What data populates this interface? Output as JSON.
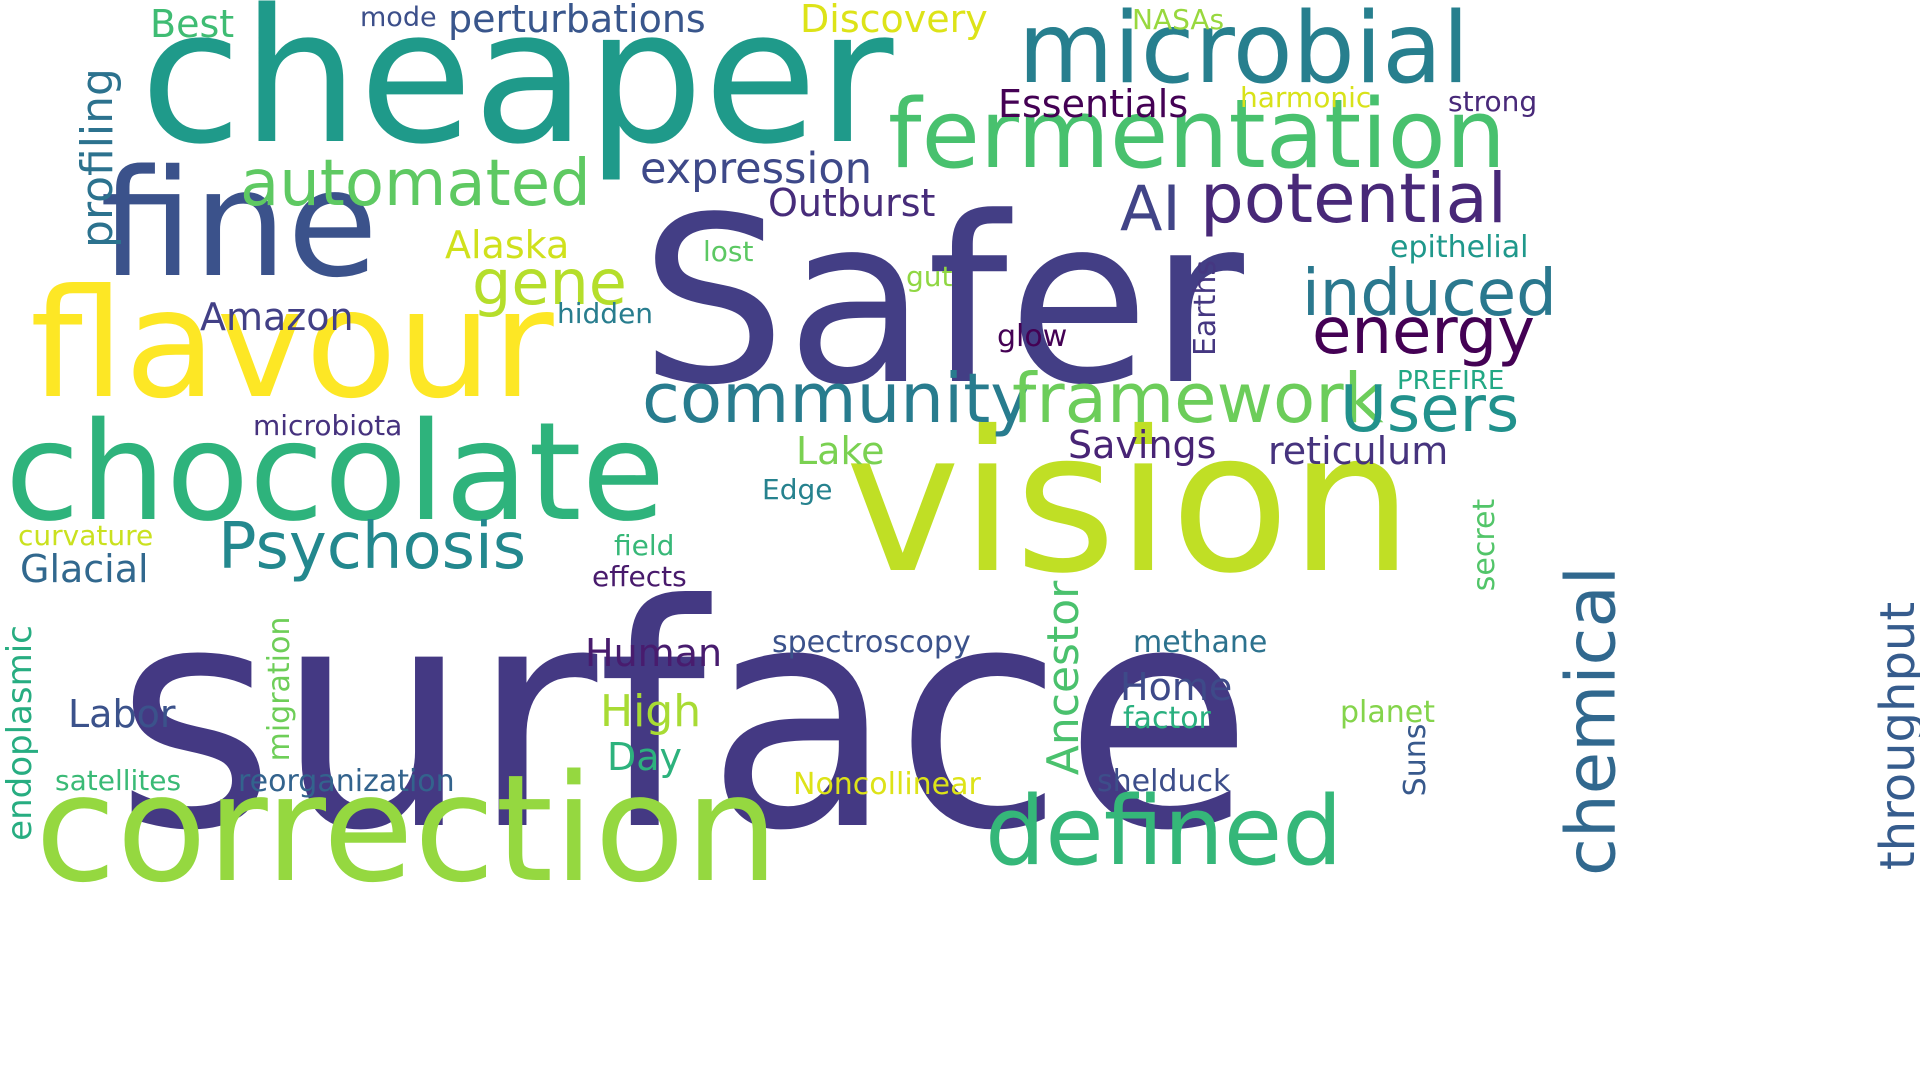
{
  "word_cloud": {
    "words": [
      {
        "text": "surface",
        "color": "#443983"
      },
      {
        "text": "Safer",
        "color": "#433e85"
      },
      {
        "text": "cheaper",
        "color": "#1f9a8a"
      },
      {
        "text": "vision",
        "color": "#c0df25"
      },
      {
        "text": "correction",
        "color": "#95d840"
      },
      {
        "text": "fine",
        "color": "#3b528b"
      },
      {
        "text": "flavour",
        "color": "#fde725"
      },
      {
        "text": "chocolate",
        "color": "#2eb37c"
      },
      {
        "text": "microbial",
        "color": "#277f8e"
      },
      {
        "text": "fermentation",
        "color": "#48c16e"
      },
      {
        "text": "defined",
        "color": "#35b779"
      },
      {
        "text": "automated",
        "color": "#5ec962"
      },
      {
        "text": "community",
        "color": "#287c8e"
      },
      {
        "text": "framework",
        "color": "#6ccd5a"
      },
      {
        "text": "potential",
        "color": "#482878"
      },
      {
        "text": "chemical",
        "color": "#31688e"
      },
      {
        "text": "Psychosis",
        "color": "#23888e"
      },
      {
        "text": "Users",
        "color": "#21918c"
      },
      {
        "text": "induced",
        "color": "#2a788e"
      },
      {
        "text": "energy",
        "color": "#440154"
      },
      {
        "text": "gene",
        "color": "#b5de2b"
      },
      {
        "text": "AI",
        "color": "#414487"
      },
      {
        "text": "expression",
        "color": "#3e4989"
      },
      {
        "text": "throughput",
        "color": "#365c8d"
      },
      {
        "text": "profiling",
        "color": "#2c728e"
      },
      {
        "text": "Ancestor",
        "color": "#4ac16d"
      },
      {
        "text": "Essentials",
        "color": "#440154"
      },
      {
        "text": "perturbations",
        "color": "#39568c"
      },
      {
        "text": "Discovery",
        "color": "#dde318"
      },
      {
        "text": "Best",
        "color": "#3fbc73"
      },
      {
        "text": "Outburst",
        "color": "#472c7a"
      },
      {
        "text": "reticulum",
        "color": "#46337e"
      },
      {
        "text": "Savings",
        "color": "#482475"
      },
      {
        "text": "Alaska",
        "color": "#d0e11c"
      },
      {
        "text": "Amazon",
        "color": "#424086"
      },
      {
        "text": "Lake",
        "color": "#7ad151"
      },
      {
        "text": "Human",
        "color": "#481c6e"
      },
      {
        "text": "High",
        "color": "#a8db34"
      },
      {
        "text": "Home",
        "color": "#3e4a89"
      },
      {
        "text": "Labor",
        "color": "#3b528b"
      },
      {
        "text": "Glacial",
        "color": "#31688e"
      },
      {
        "text": "Day",
        "color": "#2db27d"
      },
      {
        "text": "endoplasmic",
        "color": "#27ad81"
      },
      {
        "text": "migration",
        "color": "#6ece58"
      },
      {
        "text": "reorganization",
        "color": "#33638d"
      },
      {
        "text": "Noncollinear",
        "color": "#dde318"
      },
      {
        "text": "shelduck",
        "color": "#3d4e8a"
      },
      {
        "text": "spectroscopy",
        "color": "#3b528b"
      },
      {
        "text": "methane",
        "color": "#2c728e"
      },
      {
        "text": "factor",
        "color": "#2ab07f"
      },
      {
        "text": "planet",
        "color": "#84d44b"
      },
      {
        "text": "Suns",
        "color": "#38598c"
      },
      {
        "text": "secret",
        "color": "#52c569"
      },
      {
        "text": "Earths",
        "color": "#453781"
      },
      {
        "text": "glow",
        "color": "#440154"
      },
      {
        "text": "PREFIRE",
        "color": "#22a884"
      },
      {
        "text": "epithelial",
        "color": "#1f988b"
      },
      {
        "text": "strong",
        "color": "#482979"
      },
      {
        "text": "harmonic",
        "color": "#d8e219"
      },
      {
        "text": "NASAs",
        "color": "#98d83e"
      },
      {
        "text": "mode",
        "color": "#3c4f8a"
      },
      {
        "text": "lost",
        "color": "#5cc863"
      },
      {
        "text": "gut",
        "color": "#90d743"
      },
      {
        "text": "hidden",
        "color": "#287d8e"
      },
      {
        "text": "microbiota",
        "color": "#46327e"
      },
      {
        "text": "curvature",
        "color": "#cae11f"
      },
      {
        "text": "field",
        "color": "#37b878"
      },
      {
        "text": "effects",
        "color": "#481a6c"
      },
      {
        "text": "Edge",
        "color": "#26828e"
      },
      {
        "text": "satellites",
        "color": "#3aba76"
      }
    ]
  }
}
